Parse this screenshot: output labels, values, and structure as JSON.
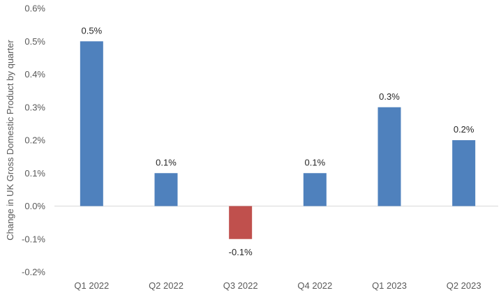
{
  "chart_data": {
    "type": "bar",
    "title": "",
    "xlabel": "",
    "ylabel": "Change in UK Gross Domestic Product by quarter",
    "categories": [
      "Q1 2022",
      "Q2 2022",
      "Q3 2022",
      "Q4 2022",
      "Q1 2023",
      "Q2 2023"
    ],
    "values": [
      0.5,
      0.1,
      -0.1,
      0.1,
      0.3,
      0.2
    ],
    "data_labels": [
      "0.5%",
      "0.1%",
      "-0.1%",
      "0.1%",
      "0.3%",
      "0.2%"
    ],
    "ylim": [
      -0.2,
      0.6
    ],
    "y_ticks": [
      0.6,
      0.5,
      0.4,
      0.3,
      0.2,
      0.1,
      0.0,
      -0.1,
      -0.2
    ],
    "y_tick_labels": [
      "0.6%",
      "0.5%",
      "0.4%",
      "0.3%",
      "0.2%",
      "0.1%",
      "0.0%",
      "-0.1%",
      "-0.2%"
    ],
    "grid": false,
    "legend": "none",
    "colors": {
      "positive": "#4F81BD",
      "negative": "#C0504D",
      "zero_line": "#D9D9D9"
    }
  }
}
